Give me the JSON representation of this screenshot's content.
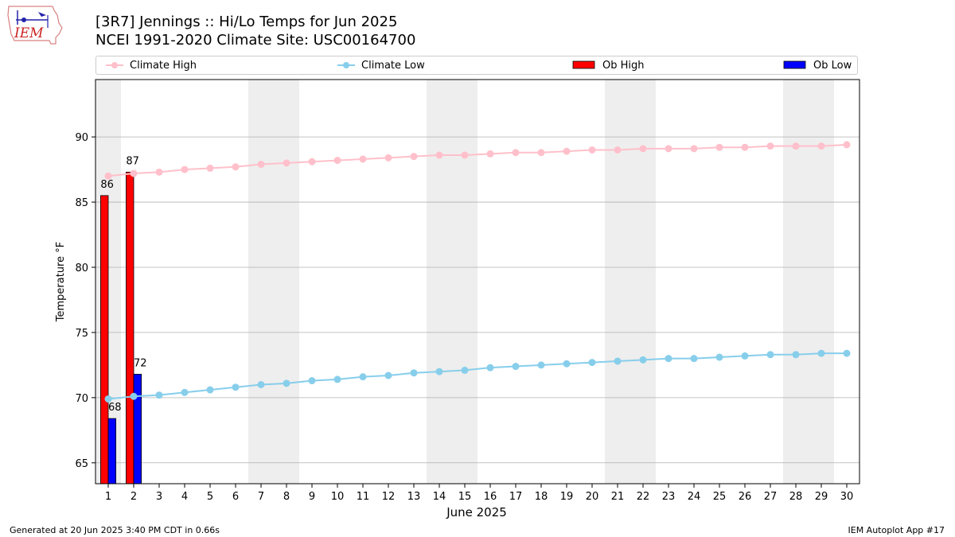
{
  "header": {
    "title_line1": "[3R7] Jennings :: Hi/Lo Temps for Jun 2025",
    "title_line2": "NCEI 1991-2020 Climate Site: USC00164700",
    "logo_text": "IEM"
  },
  "legend": {
    "climate_high": "Climate High",
    "climate_low": "Climate Low",
    "ob_high": "Ob High",
    "ob_low": "Ob Low"
  },
  "footer": {
    "generated": "Generated at 20 Jun 2025 3:40 PM CDT in 0.66s",
    "app": "IEM Autoplot App #17"
  },
  "colors": {
    "climate_high": "#ffc0cb",
    "climate_low": "#87ceeb",
    "ob_high": "#ff0000",
    "ob_low": "#0000ff",
    "weekend_shade": "#eeeeee",
    "grid": "#b0b0b0"
  },
  "chart_data": {
    "type": "bar",
    "title": "[3R7] Jennings :: Hi/Lo Temps for Jun 2025",
    "subtitle": "NCEI 1991-2020 Climate Site: USC00164700",
    "xlabel": "June 2025",
    "ylabel": "Temperature °F",
    "x": [
      1,
      2,
      3,
      4,
      5,
      6,
      7,
      8,
      9,
      10,
      11,
      12,
      13,
      14,
      15,
      16,
      17,
      18,
      19,
      20,
      21,
      22,
      23,
      24,
      25,
      26,
      27,
      28,
      29,
      30
    ],
    "xlim": [
      0.5,
      30.5
    ],
    "ylim": [
      63.4,
      94.4
    ],
    "yticks": [
      65,
      70,
      75,
      80,
      85,
      90
    ],
    "grid": "horizontal",
    "legend_position": "top",
    "weekend_days": [
      1,
      7,
      8,
      14,
      15,
      21,
      22,
      28,
      29
    ],
    "series": [
      {
        "name": "Climate High",
        "kind": "line",
        "values": [
          87.0,
          87.2,
          87.3,
          87.5,
          87.6,
          87.7,
          87.9,
          88.0,
          88.1,
          88.2,
          88.3,
          88.4,
          88.5,
          88.6,
          88.6,
          88.7,
          88.8,
          88.8,
          88.9,
          89.0,
          89.0,
          89.1,
          89.1,
          89.1,
          89.2,
          89.2,
          89.3,
          89.3,
          89.3,
          89.4
        ]
      },
      {
        "name": "Climate Low",
        "kind": "line",
        "values": [
          69.9,
          70.1,
          70.2,
          70.4,
          70.6,
          70.8,
          71.0,
          71.1,
          71.3,
          71.4,
          71.6,
          71.7,
          71.9,
          72.0,
          72.1,
          72.3,
          72.4,
          72.5,
          72.6,
          72.7,
          72.8,
          72.9,
          73.0,
          73.0,
          73.1,
          73.2,
          73.3,
          73.3,
          73.4,
          73.4
        ]
      },
      {
        "name": "Ob High",
        "kind": "bar",
        "x": [
          1,
          2
        ],
        "values": [
          85.5,
          87.3
        ],
        "labels": [
          "86",
          "87"
        ]
      },
      {
        "name": "Ob Low",
        "kind": "bar",
        "x": [
          1,
          2
        ],
        "values": [
          68.4,
          71.8
        ],
        "labels": [
          "68",
          "72"
        ]
      }
    ]
  }
}
